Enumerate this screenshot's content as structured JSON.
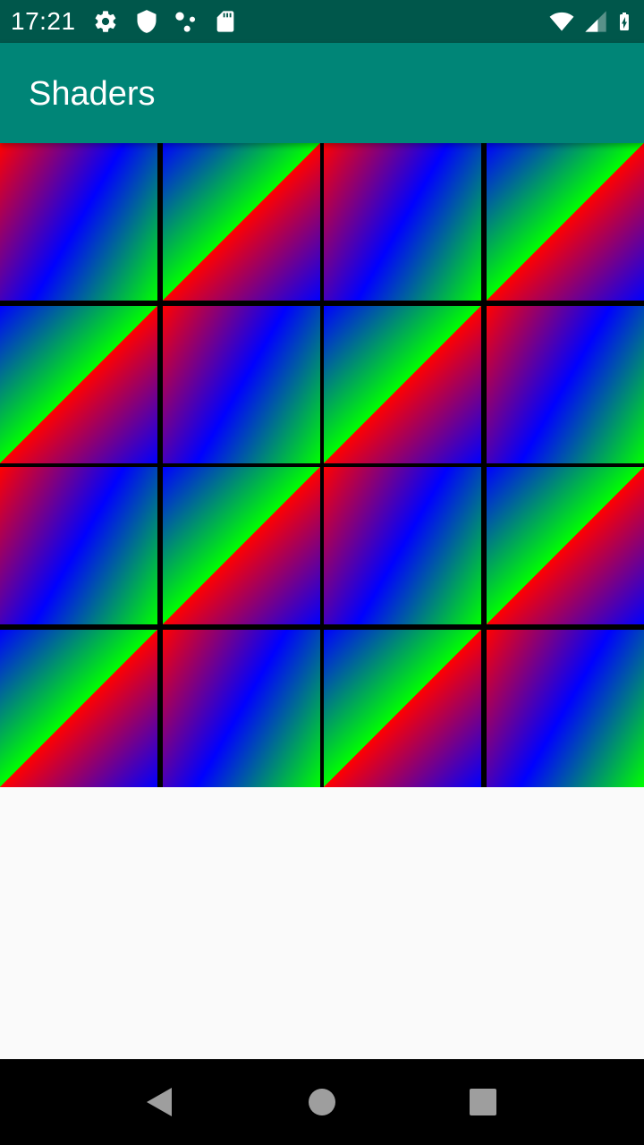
{
  "status_bar": {
    "time": "17:21",
    "icons": [
      "gear-icon",
      "shield-icon",
      "dots-icon",
      "sd-card-icon",
      "wifi-icon",
      "cellular-signal-icon",
      "battery-charging-icon"
    ]
  },
  "app_bar": {
    "title": "Shaders"
  },
  "shader_grid": {
    "rows": 4,
    "columns": 4,
    "colors": [
      "#ff0000",
      "#0000ff",
      "#00ff00"
    ],
    "tile_pattern": [
      [
        "A",
        "B",
        "A",
        "B"
      ],
      [
        "B",
        "A",
        "B",
        "A"
      ],
      [
        "A",
        "B",
        "A",
        "B"
      ],
      [
        "B",
        "A",
        "B",
        "A"
      ]
    ]
  },
  "nav_bar": {
    "buttons": [
      "back-icon",
      "home-icon",
      "recents-icon"
    ]
  },
  "theme": {
    "status_bar_color": "#00574b",
    "app_bar_color": "#008577",
    "background_color": "#fafafa"
  }
}
